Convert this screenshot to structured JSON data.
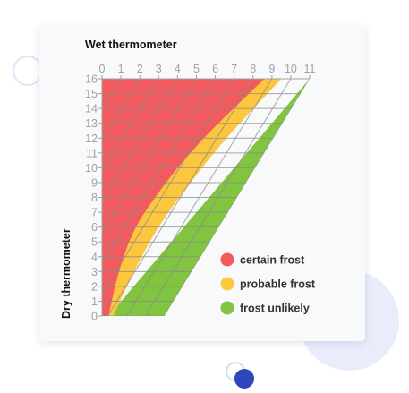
{
  "chart_data": {
    "type": "area",
    "xlabel": "Wet thermometer",
    "ylabel": "Dry thermometer",
    "x_ticks": [
      0,
      1,
      2,
      3,
      4,
      5,
      6,
      7,
      8,
      9,
      10,
      11
    ],
    "y_ticks": [
      0,
      1,
      2,
      3,
      4,
      5,
      6,
      7,
      8,
      9,
      10,
      11,
      12,
      13,
      14,
      15,
      16
    ],
    "xlim": [
      0,
      11
    ],
    "ylim": [
      0,
      16
    ],
    "grid": true,
    "legend_position": "bottom-right",
    "series": [
      {
        "name": "certain frost",
        "color": "#f15b5e",
        "boundary": [
          [
            0.35,
            0
          ],
          [
            0.9,
            3
          ],
          [
            1.8,
            6
          ],
          [
            3.4,
            9
          ],
          [
            5.4,
            12
          ],
          [
            8.6,
            16
          ]
        ]
      },
      {
        "name": "probable frost",
        "color": "#fdc63f",
        "boundary": [
          [
            0.6,
            0
          ],
          [
            1.7,
            3
          ],
          [
            3.0,
            6
          ],
          [
            4.7,
            9
          ],
          [
            6.6,
            12
          ],
          [
            9.5,
            16
          ]
        ]
      },
      {
        "name": "frost unlikely",
        "color": "#80c43f",
        "boundary": [
          [
            0.35,
            0
          ],
          [
            3.3,
            0
          ],
          [
            11,
            16
          ]
        ]
      }
    ],
    "grid_color": "#8a8a8a",
    "tick_color": "#a1a1a1"
  }
}
